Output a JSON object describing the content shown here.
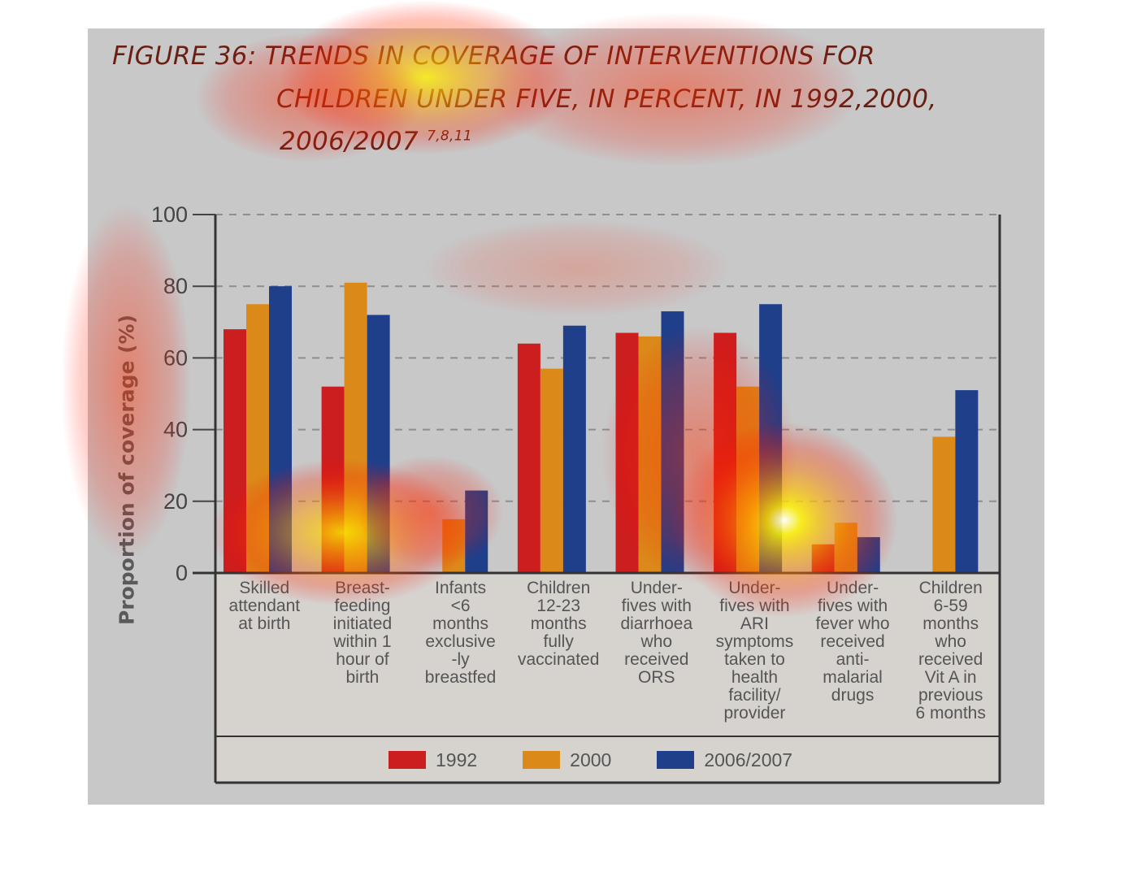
{
  "title": {
    "line1": "FIGURE 36: TRENDS IN COVERAGE OF INTERVENTIONS FOR",
    "line2": "CHILDREN UNDER FIVE, IN PERCENT, IN 1992,2000,",
    "line3": "2006/2007",
    "superscript": "7,8,11"
  },
  "chart_data": {
    "type": "bar",
    "ylabel": "Proportion of coverage (%)",
    "ylim": [
      0,
      100
    ],
    "yticks": [
      "0",
      "20",
      "40",
      "60",
      "80",
      "100"
    ],
    "grid": true,
    "legend_position": "bottom",
    "categories": [
      "Skilled\nattendant\nat birth",
      "Breast-\nfeeding\ninitiated\nwithin 1\nhour of\nbirth",
      "Infants\n<6\nmonths\nexclusive\n-ly\nbreastfed",
      "Children\n12-23\nmonths\nfully\nvaccinated",
      "Under-\nfives with\ndiarrhoea\nwho\nreceived\nORS",
      "Under-\nfives with\nARI\nsymptoms\ntaken to\nhealth\nfacility/\nprovider",
      "Under-\nfives with\nfever who\nreceived\nanti-\nmalarial\ndrugs",
      "Children\n6-59\nmonths\nwho\nreceived\nVit A in\nprevious\n6 months"
    ],
    "series": [
      {
        "name": "1992",
        "color": "#cc1e1e",
        "values": [
          68,
          52,
          null,
          64,
          67,
          67,
          8,
          null
        ]
      },
      {
        "name": "2000",
        "color": "#db8a1a",
        "values": [
          75,
          81,
          15,
          57,
          66,
          52,
          14,
          38
        ]
      },
      {
        "name": "2006/2007",
        "color": "#1f3f8a",
        "values": [
          80,
          72,
          23,
          69,
          73,
          75,
          10,
          51
        ]
      }
    ]
  }
}
